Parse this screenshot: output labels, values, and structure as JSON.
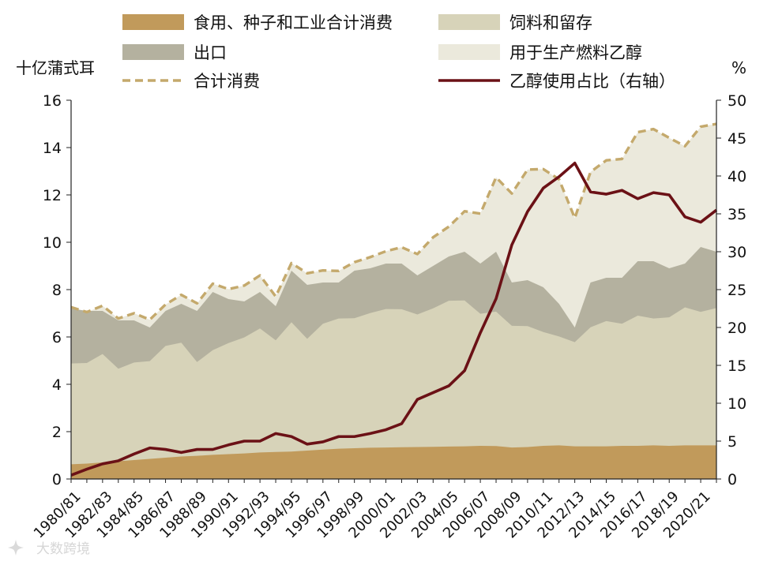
{
  "chart_data": {
    "type": "area",
    "y_left_label": "十亿蒲式耳",
    "y_right_label": "%",
    "y_left_range": [
      0,
      16
    ],
    "y_right_range": [
      0,
      50
    ],
    "y_left_ticks": [
      "0",
      "2",
      "4",
      "6",
      "8",
      "10",
      "12",
      "14",
      "16"
    ],
    "y_right_ticks": [
      "0",
      "5",
      "10",
      "15",
      "20",
      "25",
      "30",
      "35",
      "40",
      "45",
      "50"
    ],
    "x": [
      "1980/81",
      "1981/82",
      "1982/83",
      "1983/84",
      "1984/85",
      "1985/86",
      "1986/87",
      "1987/88",
      "1988/89",
      "1989/90",
      "1990/91",
      "1991/92",
      "1992/93",
      "1993/94",
      "1994/95",
      "1995/96",
      "1996/97",
      "1997/98",
      "1998/99",
      "1999/00",
      "2000/01",
      "2001/02",
      "2002/03",
      "2003/04",
      "2004/05",
      "2005/06",
      "2006/07",
      "2007/08",
      "2008/09",
      "2009/10",
      "2010/11",
      "2011/12",
      "2012/13",
      "2013/14",
      "2014/15",
      "2015/16",
      "2016/17",
      "2017/18",
      "2018/19",
      "2019/20",
      "2020/21",
      "2021/22"
    ],
    "x_tick_labels": [
      "1980/81",
      "1982/83",
      "1984/85",
      "1986/87",
      "1988/89",
      "1990/91",
      "1992/93",
      "1994/95",
      "1996/97",
      "1998/99",
      "2000/01",
      "2002/03",
      "2004/05",
      "2006/07",
      "2008/09",
      "2010/11",
      "2012/13",
      "2014/15",
      "2016/17",
      "2018/19",
      "2020/21"
    ],
    "series": [
      {
        "name": "食用、种子和工业合计消费",
        "kind": "area",
        "axis": "left",
        "color": "#c19a5b",
        "values": [
          0.62,
          0.65,
          0.7,
          0.75,
          0.8,
          0.85,
          0.9,
          0.95,
          0.98,
          1.02,
          1.05,
          1.08,
          1.12,
          1.14,
          1.16,
          1.2,
          1.24,
          1.28,
          1.3,
          1.32,
          1.33,
          1.34,
          1.35,
          1.36,
          1.37,
          1.38,
          1.4,
          1.39,
          1.33,
          1.35,
          1.4,
          1.42,
          1.38,
          1.38,
          1.38,
          1.4,
          1.4,
          1.42,
          1.4,
          1.42,
          1.42,
          1.42
        ]
      },
      {
        "name": "饲料和留存",
        "kind": "area",
        "axis": "left",
        "color": "#d7d3b9",
        "values": [
          4.88,
          4.9,
          5.28,
          4.66,
          4.92,
          4.98,
          5.62,
          5.76,
          4.94,
          5.44,
          5.74,
          5.98,
          6.36,
          5.86,
          6.62,
          5.92,
          6.56,
          6.78,
          6.79,
          7.01,
          7.18,
          7.17,
          6.95,
          7.21,
          7.53,
          7.54,
          6.98,
          7.07,
          6.47,
          6.46,
          6.21,
          6.02,
          5.78,
          6.41,
          6.67,
          6.56,
          6.9,
          6.78,
          6.83,
          7.25,
          7.06,
          7.22
        ]
      },
      {
        "name": "出口",
        "kind": "area",
        "axis": "left",
        "color": "#b4b19f",
        "values": [
          7.2,
          7.1,
          7.1,
          6.7,
          6.7,
          6.4,
          7.1,
          7.4,
          7.1,
          7.9,
          7.6,
          7.5,
          7.9,
          7.3,
          8.8,
          8.2,
          8.3,
          8.3,
          8.8,
          8.9,
          9.1,
          9.1,
          8.6,
          9.0,
          9.4,
          9.6,
          9.1,
          9.6,
          8.3,
          8.4,
          8.1,
          7.4,
          6.4,
          8.3,
          8.5,
          8.5,
          9.2,
          9.2,
          8.9,
          9.1,
          9.8,
          9.6
        ]
      },
      {
        "name": "用于生产燃料乙醇",
        "kind": "area",
        "axis": "left",
        "color": "#ebe9dc",
        "values": [
          7.26,
          7.05,
          7.32,
          6.78,
          7.0,
          6.73,
          7.37,
          7.78,
          7.42,
          8.25,
          8.02,
          8.17,
          8.6,
          7.71,
          9.12,
          8.69,
          8.81,
          8.79,
          9.16,
          9.37,
          9.62,
          9.79,
          9.5,
          10.21,
          10.66,
          11.31,
          11.21,
          12.74,
          12.06,
          13.07,
          13.09,
          12.66,
          11.02,
          12.97,
          13.46,
          13.52,
          14.65,
          14.78,
          14.41,
          14.06,
          14.88,
          15.0
        ]
      },
      {
        "name": "合计消费",
        "kind": "dashed-line",
        "axis": "left",
        "color": "#c4a96c",
        "values": [
          7.26,
          7.05,
          7.32,
          6.78,
          7.0,
          6.73,
          7.37,
          7.78,
          7.42,
          8.25,
          8.02,
          8.17,
          8.6,
          7.71,
          9.12,
          8.69,
          8.81,
          8.79,
          9.16,
          9.37,
          9.62,
          9.79,
          9.5,
          10.21,
          10.66,
          11.31,
          11.21,
          12.74,
          12.06,
          13.07,
          13.09,
          12.66,
          11.02,
          12.97,
          13.46,
          13.52,
          14.65,
          14.78,
          14.41,
          14.06,
          14.88,
          15.0
        ]
      },
      {
        "name": "乙醇使用占比（右轴）",
        "kind": "line",
        "axis": "right",
        "color": "#6b1116",
        "values": [
          0.5,
          1.3,
          2.0,
          2.4,
          3.3,
          4.1,
          3.9,
          3.5,
          3.9,
          3.9,
          4.5,
          5.0,
          5.0,
          6.0,
          5.6,
          4.6,
          4.9,
          5.6,
          5.6,
          6.0,
          6.5,
          7.3,
          10.5,
          11.4,
          12.3,
          14.3,
          19.3,
          23.8,
          30.9,
          35.3,
          38.4,
          39.9,
          41.7,
          37.9,
          37.6,
          38.1,
          37.0,
          37.8,
          37.5,
          34.6,
          33.9,
          35.5
        ]
      }
    ],
    "legend": [
      {
        "label": "食用、种子和工业合计消费",
        "type": "box",
        "color": "#c19a5b"
      },
      {
        "label": "饲料和留存",
        "type": "box",
        "color": "#d7d3b9"
      },
      {
        "label": "出口",
        "type": "box",
        "color": "#b4b19f"
      },
      {
        "label": "用于生产燃料乙醇",
        "type": "box",
        "color": "#ebe9dc"
      },
      {
        "label": "合计消费",
        "type": "dash",
        "color": "#c4a96c"
      },
      {
        "label": "乙醇使用占比（右轴）",
        "type": "line",
        "color": "#6b1116"
      }
    ],
    "legend_position": "top",
    "grid": false
  },
  "watermark": {
    "text": "大数跨境",
    "icon": "sparkle-logo-icon"
  }
}
